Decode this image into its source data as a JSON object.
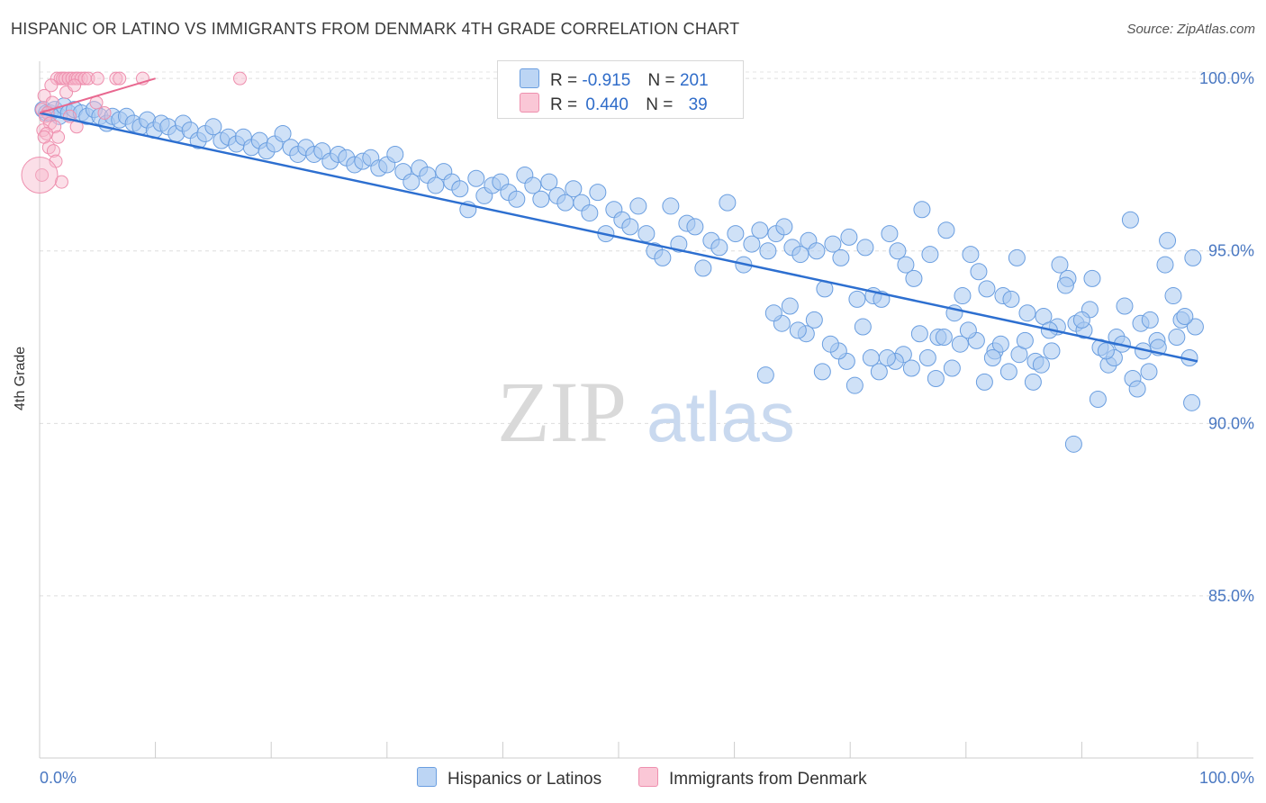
{
  "title": "HISPANIC OR LATINO VS IMMIGRANTS FROM DENMARK 4TH GRADE CORRELATION CHART",
  "source": "Source: ZipAtlas.com",
  "watermark": {
    "zip": "ZIP",
    "atlas": "atlas"
  },
  "legend": {
    "row1": {
      "r_label": "R =",
      "r_value": "-0.915",
      "n_label": "N =",
      "n_value": "201"
    },
    "row2": {
      "r_label": "R =",
      "r_value": "0.440",
      "n_label": "N =",
      "n_value": "39"
    }
  },
  "bottom_legend": {
    "series1": "Hispanics or Latinos",
    "series2": "Immigrants from Denmark"
  },
  "colors": {
    "blue_fill": "#a8c8f0",
    "blue_stroke": "#6a9ee0",
    "blue_line": "#2d6fd0",
    "pink_fill": "#f7b8cc",
    "pink_stroke": "#ee8fae",
    "pink_line": "#e8678f",
    "tick_text": "#4a78c2",
    "grid": "#dddddd"
  },
  "chart_data": {
    "type": "scatter",
    "title": "HISPANIC OR LATINO VS IMMIGRANTS FROM DENMARK 4TH GRADE CORRELATION CHART",
    "xlabel": "",
    "ylabel": "4th Grade",
    "xlim": [
      0,
      100
    ],
    "ylim": [
      80.3,
      100.5
    ],
    "x_tick_labels": [
      "0.0%",
      "100.0%"
    ],
    "y_ticks": [
      85,
      90,
      95,
      100
    ],
    "y_tick_labels": [
      "85.0%",
      "90.0%",
      "95.0%",
      "100.0%"
    ],
    "grid": "horizontal dashed",
    "legend_position": "top-center",
    "series": [
      {
        "name": "Hispanics or Latinos",
        "r": -0.915,
        "n": 201,
        "trend": {
          "x": [
            0,
            100
          ],
          "y": [
            99.0,
            91.8
          ]
        },
        "points": [
          [
            0.3,
            99.1
          ],
          [
            0.6,
            99.0
          ],
          [
            0.9,
            99.0
          ],
          [
            1.3,
            99.1
          ],
          [
            1.7,
            98.9
          ],
          [
            2.1,
            99.2
          ],
          [
            2.5,
            99.0
          ],
          [
            3.0,
            99.1
          ],
          [
            3.6,
            99.0
          ],
          [
            4.1,
            98.9
          ],
          [
            4.7,
            99.1
          ],
          [
            5.2,
            98.9
          ],
          [
            5.8,
            98.7
          ],
          [
            6.3,
            98.9
          ],
          [
            6.9,
            98.8
          ],
          [
            7.5,
            98.9
          ],
          [
            8.1,
            98.7
          ],
          [
            8.7,
            98.6
          ],
          [
            9.3,
            98.8
          ],
          [
            9.9,
            98.5
          ],
          [
            10.5,
            98.7
          ],
          [
            11.1,
            98.6
          ],
          [
            11.8,
            98.4
          ],
          [
            12.4,
            98.7
          ],
          [
            13.0,
            98.5
          ],
          [
            13.7,
            98.2
          ],
          [
            14.3,
            98.4
          ],
          [
            15.0,
            98.6
          ],
          [
            15.7,
            98.2
          ],
          [
            16.3,
            98.3
          ],
          [
            17.0,
            98.1
          ],
          [
            17.6,
            98.3
          ],
          [
            18.3,
            98.0
          ],
          [
            19.0,
            98.2
          ],
          [
            19.6,
            97.9
          ],
          [
            20.3,
            98.1
          ],
          [
            21.0,
            98.4
          ],
          [
            21.7,
            98.0
          ],
          [
            22.3,
            97.8
          ],
          [
            23.0,
            98.0
          ],
          [
            23.7,
            97.8
          ],
          [
            24.4,
            97.9
          ],
          [
            25.1,
            97.6
          ],
          [
            25.8,
            97.8
          ],
          [
            26.5,
            97.7
          ],
          [
            27.2,
            97.5
          ],
          [
            27.9,
            97.6
          ],
          [
            28.6,
            97.7
          ],
          [
            29.3,
            97.4
          ],
          [
            30.0,
            97.5
          ],
          [
            30.7,
            97.8
          ],
          [
            31.4,
            97.3
          ],
          [
            32.1,
            97.0
          ],
          [
            32.8,
            97.4
          ],
          [
            33.5,
            97.2
          ],
          [
            34.2,
            96.9
          ],
          [
            34.9,
            97.3
          ],
          [
            35.6,
            97.0
          ],
          [
            36.3,
            96.8
          ],
          [
            37.0,
            96.2
          ],
          [
            37.7,
            97.1
          ],
          [
            38.4,
            96.6
          ],
          [
            39.1,
            96.9
          ],
          [
            39.8,
            97.0
          ],
          [
            40.5,
            96.7
          ],
          [
            41.2,
            96.5
          ],
          [
            41.9,
            97.2
          ],
          [
            42.6,
            96.9
          ],
          [
            43.3,
            96.5
          ],
          [
            44.0,
            97.0
          ],
          [
            44.7,
            96.6
          ],
          [
            45.4,
            96.4
          ],
          [
            46.1,
            96.8
          ],
          [
            46.8,
            96.4
          ],
          [
            47.5,
            96.1
          ],
          [
            48.2,
            96.7
          ],
          [
            48.9,
            95.5
          ],
          [
            49.6,
            96.2
          ],
          [
            50.3,
            95.9
          ],
          [
            51.0,
            95.7
          ],
          [
            51.7,
            96.3
          ],
          [
            52.4,
            95.5
          ],
          [
            53.1,
            95.0
          ],
          [
            53.8,
            94.8
          ],
          [
            54.5,
            96.3
          ],
          [
            55.2,
            95.2
          ],
          [
            55.9,
            95.8
          ],
          [
            56.6,
            95.7
          ],
          [
            57.3,
            94.5
          ],
          [
            58.0,
            95.3
          ],
          [
            58.7,
            95.1
          ],
          [
            59.4,
            96.4
          ],
          [
            60.1,
            95.5
          ],
          [
            60.8,
            94.6
          ],
          [
            61.5,
            95.2
          ],
          [
            62.2,
            95.6
          ],
          [
            62.9,
            95.0
          ],
          [
            63.6,
            95.5
          ],
          [
            64.3,
            95.7
          ],
          [
            65.0,
            95.1
          ],
          [
            65.7,
            94.9
          ],
          [
            66.4,
            95.3
          ],
          [
            67.1,
            95.0
          ],
          [
            67.8,
            93.9
          ],
          [
            68.5,
            95.2
          ],
          [
            69.2,
            94.8
          ],
          [
            69.9,
            95.4
          ],
          [
            70.6,
            93.6
          ],
          [
            71.3,
            95.1
          ],
          [
            72.0,
            93.7
          ],
          [
            72.7,
            93.6
          ],
          [
            73.4,
            95.5
          ],
          [
            74.1,
            95.0
          ],
          [
            74.8,
            94.6
          ],
          [
            75.5,
            94.2
          ],
          [
            76.2,
            96.2
          ],
          [
            76.9,
            94.9
          ],
          [
            77.6,
            92.5
          ],
          [
            78.3,
            95.6
          ],
          [
            79.0,
            93.2
          ],
          [
            79.7,
            93.7
          ],
          [
            80.4,
            94.9
          ],
          [
            81.1,
            94.4
          ],
          [
            81.8,
            93.9
          ],
          [
            82.5,
            92.1
          ],
          [
            83.2,
            93.7
          ],
          [
            83.9,
            93.6
          ],
          [
            84.6,
            92.0
          ],
          [
            85.3,
            93.2
          ],
          [
            86.0,
            91.8
          ],
          [
            86.7,
            93.1
          ],
          [
            87.4,
            92.1
          ],
          [
            88.1,
            94.6
          ],
          [
            88.8,
            94.2
          ],
          [
            89.5,
            92.9
          ],
          [
            90.2,
            92.7
          ],
          [
            90.9,
            94.2
          ],
          [
            91.6,
            92.2
          ],
          [
            92.3,
            91.7
          ],
          [
            93.0,
            92.5
          ],
          [
            93.7,
            93.4
          ],
          [
            94.4,
            91.3
          ],
          [
            95.1,
            92.9
          ],
          [
            95.8,
            91.5
          ],
          [
            96.5,
            92.4
          ],
          [
            97.2,
            94.6
          ],
          [
            97.9,
            93.7
          ],
          [
            98.6,
            93.0
          ],
          [
            99.3,
            91.9
          ],
          [
            99.6,
            94.8
          ],
          [
            99.8,
            92.8
          ],
          [
            99.5,
            90.6
          ],
          [
            98.9,
            93.1
          ],
          [
            98.2,
            92.5
          ],
          [
            97.4,
            95.3
          ],
          [
            96.6,
            92.2
          ],
          [
            95.9,
            93.0
          ],
          [
            95.3,
            92.1
          ],
          [
            94.8,
            91.0
          ],
          [
            94.2,
            95.9
          ],
          [
            93.5,
            92.3
          ],
          [
            92.8,
            91.9
          ],
          [
            92.1,
            92.1
          ],
          [
            91.4,
            90.7
          ],
          [
            90.7,
            93.3
          ],
          [
            90.0,
            93.0
          ],
          [
            89.3,
            89.4
          ],
          [
            88.6,
            94.0
          ],
          [
            87.9,
            92.8
          ],
          [
            87.2,
            92.7
          ],
          [
            86.5,
            91.7
          ],
          [
            85.8,
            91.2
          ],
          [
            85.1,
            92.4
          ],
          [
            84.4,
            94.8
          ],
          [
            83.7,
            91.5
          ],
          [
            83.0,
            92.3
          ],
          [
            82.3,
            91.9
          ],
          [
            81.6,
            91.2
          ],
          [
            80.9,
            92.4
          ],
          [
            80.2,
            92.7
          ],
          [
            79.5,
            92.3
          ],
          [
            78.8,
            91.6
          ],
          [
            78.1,
            92.5
          ],
          [
            77.4,
            91.3
          ],
          [
            76.7,
            91.9
          ],
          [
            76.0,
            92.6
          ],
          [
            75.3,
            91.6
          ],
          [
            74.6,
            92.0
          ],
          [
            73.9,
            91.8
          ],
          [
            73.2,
            91.9
          ],
          [
            72.5,
            91.5
          ],
          [
            71.8,
            91.9
          ],
          [
            71.1,
            92.8
          ],
          [
            70.4,
            91.1
          ],
          [
            69.7,
            91.8
          ],
          [
            69.0,
            92.1
          ],
          [
            68.3,
            92.3
          ],
          [
            67.6,
            91.5
          ],
          [
            66.9,
            93.0
          ],
          [
            66.2,
            92.6
          ],
          [
            65.5,
            92.7
          ],
          [
            64.8,
            93.4
          ],
          [
            64.1,
            92.9
          ],
          [
            63.4,
            93.2
          ],
          [
            62.7,
            91.4
          ]
        ]
      },
      {
        "name": "Immigrants from Denmark",
        "r": 0.44,
        "n": 39,
        "trend": {
          "x": [
            0,
            10
          ],
          "y": [
            99.0,
            100.0
          ]
        },
        "points": [
          [
            1.5,
            100.0
          ],
          [
            1.8,
            100.0
          ],
          [
            2.0,
            100.0
          ],
          [
            2.2,
            100.0
          ],
          [
            2.5,
            100.0
          ],
          [
            2.8,
            100.0
          ],
          [
            3.1,
            100.0
          ],
          [
            3.3,
            100.0
          ],
          [
            3.6,
            100.0
          ],
          [
            3.9,
            100.0
          ],
          [
            4.2,
            100.0
          ],
          [
            5.0,
            100.0
          ],
          [
            6.6,
            100.0
          ],
          [
            6.9,
            100.0
          ],
          [
            8.9,
            100.0
          ],
          [
            17.3,
            100.0
          ],
          [
            1.0,
            99.8
          ],
          [
            2.3,
            99.6
          ],
          [
            3.0,
            99.8
          ],
          [
            0.4,
            99.5
          ],
          [
            1.1,
            99.3
          ],
          [
            4.9,
            99.3
          ],
          [
            0.2,
            99.1
          ],
          [
            0.7,
            99.0
          ],
          [
            2.6,
            98.9
          ],
          [
            5.6,
            99.0
          ],
          [
            0.5,
            98.9
          ],
          [
            0.9,
            98.7
          ],
          [
            1.3,
            98.6
          ],
          [
            0.3,
            98.5
          ],
          [
            0.6,
            98.4
          ],
          [
            1.6,
            98.3
          ],
          [
            0.4,
            98.3
          ],
          [
            0.8,
            98.0
          ],
          [
            1.2,
            97.9
          ],
          [
            1.4,
            97.6
          ],
          [
            0.2,
            97.2
          ],
          [
            1.9,
            97.0
          ],
          [
            3.2,
            98.6
          ]
        ]
      }
    ]
  }
}
